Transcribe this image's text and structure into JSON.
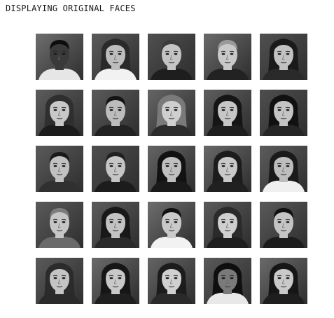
{
  "header": {
    "title": "DISPLAYING ORIGINAL FACES"
  },
  "gallery": {
    "rows": 5,
    "cols": 5,
    "faces": [
      {
        "skin": "#3a3a3a",
        "hair": "#0d0d0d",
        "bg": "#6e6e6e",
        "shirt": "#e6e6e6",
        "hair_style": "short"
      },
      {
        "skin": "#bdbdbd",
        "hair": "#2a2a2a",
        "bg": "#5a5a5a",
        "shirt": "#f2f2f2",
        "hair_style": "long"
      },
      {
        "skin": "#c4c4c4",
        "hair": "#3b3b3b",
        "bg": "#4f4f4f",
        "shirt": "#1e1e1e",
        "hair_style": "short"
      },
      {
        "skin": "#c9c9c9",
        "hair": "#9a9a9a",
        "bg": "#6a6a6a",
        "shirt": "#222222",
        "hair_style": "short"
      },
      {
        "skin": "#c2c2c2",
        "hair": "#1a1a1a",
        "bg": "#505050",
        "shirt": "#2a2a2a",
        "hair_style": "long"
      },
      {
        "skin": "#c8c8c8",
        "hair": "#2f2f2f",
        "bg": "#5c5c5c",
        "shirt": "#1c1c1c",
        "hair_style": "long"
      },
      {
        "skin": "#bcbcbc",
        "hair": "#141414",
        "bg": "#5a5a5a",
        "shirt": "#222222",
        "hair_style": "short"
      },
      {
        "skin": "#cfcfcf",
        "hair": "#7a7a7a",
        "bg": "#656565",
        "shirt": "#2c2c2c",
        "hair_style": "long"
      },
      {
        "skin": "#c6c6c6",
        "hair": "#151515",
        "bg": "#5e5e5e",
        "shirt": "#1e1e1e",
        "hair_style": "long"
      },
      {
        "skin": "#c4c4c4",
        "hair": "#111111",
        "bg": "#4e4e4e",
        "shirt": "#262626",
        "hair_style": "long"
      },
      {
        "skin": "#c1c1c1",
        "hair": "#1a1a1a",
        "bg": "#5a5a5a",
        "shirt": "#303030",
        "hair_style": "short"
      },
      {
        "skin": "#c5c5c5",
        "hair": "#202020",
        "bg": "#4e4e4e",
        "shirt": "#1c1c1c",
        "hair_style": "short"
      },
      {
        "skin": "#bfbfbf",
        "hair": "#121212",
        "bg": "#646464",
        "shirt": "#1a1a1a",
        "hair_style": "long"
      },
      {
        "skin": "#c9c9c9",
        "hair": "#1c1c1c",
        "bg": "#686868",
        "shirt": "#202020",
        "hair_style": "long"
      },
      {
        "skin": "#bdbdbd",
        "hair": "#1a1a1a",
        "bg": "#5c5c5c",
        "shirt": "#f0f0f0",
        "hair_style": "long"
      },
      {
        "skin": "#c6c6c6",
        "hair": "#7d7d7d",
        "bg": "#5a5a5a",
        "shirt": "#6a6a6a",
        "hair_style": "short"
      },
      {
        "skin": "#c3c3c3",
        "hair": "#181818",
        "bg": "#5c5c5c",
        "shirt": "#2a2a2a",
        "hair_style": "long"
      },
      {
        "skin": "#cacaca",
        "hair": "#111111",
        "bg": "#6e6e6e",
        "shirt": "#f2f2f2",
        "hair_style": "short"
      },
      {
        "skin": "#cfcfcf",
        "hair": "#2a2a2a",
        "bg": "#5a5a5a",
        "shirt": "#1e1e1e",
        "hair_style": "long"
      },
      {
        "skin": "#c4c4c4",
        "hair": "#101010",
        "bg": "#5a5a5a",
        "shirt": "#1c1c1c",
        "hair_style": "short"
      },
      {
        "skin": "#c4c4c4",
        "hair": "#2b2b2b",
        "bg": "#5a5a5a",
        "shirt": "#2a2a2a",
        "hair_style": "long"
      },
      {
        "skin": "#c8c8c8",
        "hair": "#161616",
        "bg": "#6a6a6a",
        "shirt": "#1f1f1f",
        "hair_style": "long"
      },
      {
        "skin": "#d0d0d0",
        "hair": "#1c1c1c",
        "bg": "#646464",
        "shirt": "#2a2a2a",
        "hair_style": "long"
      },
      {
        "skin": "#7a7a7a",
        "hair": "#0f0f0f",
        "bg": "#5a5a5a",
        "shirt": "#e8e8e8",
        "hair_style": "long"
      },
      {
        "skin": "#c9c9c9",
        "hair": "#161616",
        "bg": "#6a6a6a",
        "shirt": "#1e1e1e",
        "hair_style": "long"
      }
    ]
  }
}
